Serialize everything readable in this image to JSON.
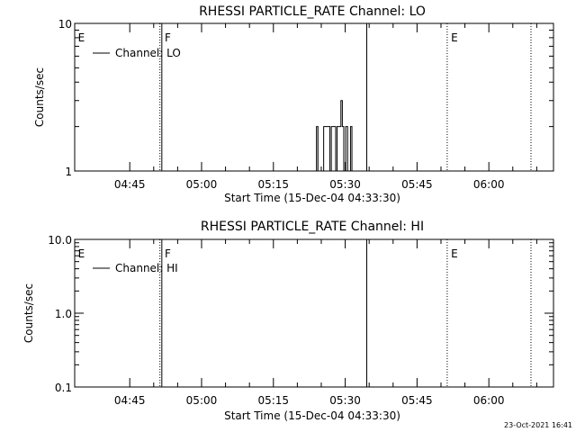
{
  "footer": {
    "timestamp": "23-Oct-2021 16:41"
  },
  "chart_data": [
    {
      "type": "line",
      "title": "RHESSI PARTICLE_RATE Channel: LO",
      "xlabel": "Start Time (15-Dec-04 04:33:30)",
      "ylabel": "Counts/sec",
      "x_unit": "minutes after 04:33:30",
      "xlim": [
        0,
        100
      ],
      "ylim": [
        1,
        10
      ],
      "y_scale": "log",
      "x_ticks": [
        {
          "value": 11.5,
          "label": "04:45"
        },
        {
          "value": 26.5,
          "label": "05:00"
        },
        {
          "value": 41.5,
          "label": "05:15"
        },
        {
          "value": 56.5,
          "label": "05:30"
        },
        {
          "value": 71.5,
          "label": "05:45"
        },
        {
          "value": 86.5,
          "label": "06:00"
        }
      ],
      "y_ticks": [
        {
          "value": 1,
          "label": "1"
        },
        {
          "value": 10,
          "label": "10"
        }
      ],
      "legend": {
        "label": "Channel: LO",
        "position": "top-left"
      },
      "series": [
        {
          "name": "Channel: LO",
          "x": [
            50.3,
            50.5,
            50.8,
            51.0,
            51.3,
            51.8,
            52.0,
            52.3,
            52.8,
            53.0,
            53.3,
            53.6,
            53.9,
            54.2,
            54.5,
            54.8,
            55.0,
            55.3,
            55.6,
            55.9,
            56.2,
            56.6,
            56.8,
            57.0,
            57.3,
            57.6,
            57.9,
            58.2,
            58.5
          ],
          "y": [
            1,
            2,
            1,
            1,
            1,
            1,
            2,
            2,
            2,
            2,
            1,
            2,
            2,
            2,
            1,
            2,
            2,
            2,
            3,
            2,
            1,
            2,
            2,
            1,
            1,
            2,
            1,
            1,
            1
          ]
        }
      ],
      "annotations": [
        {
          "x": 0.5,
          "text": "E"
        },
        {
          "x": 18.6,
          "text": "F"
        },
        {
          "x": 78.4,
          "text": "E"
        }
      ],
      "vlines": [
        {
          "x": 17.8,
          "style": "dotted"
        },
        {
          "x": 18.2,
          "style": "solid"
        },
        {
          "x": 61.0,
          "style": "solid"
        },
        {
          "x": 77.8,
          "style": "dotted"
        },
        {
          "x": 95.3,
          "style": "dotted"
        }
      ]
    },
    {
      "type": "line",
      "title": "RHESSI PARTICLE_RATE Channel: HI",
      "xlabel": "Start Time (15-Dec-04 04:33:30)",
      "ylabel": "Counts/sec",
      "x_unit": "minutes after 04:33:30",
      "xlim": [
        0,
        100
      ],
      "ylim": [
        0.1,
        10
      ],
      "y_scale": "log",
      "x_ticks": [
        {
          "value": 11.5,
          "label": "04:45"
        },
        {
          "value": 26.5,
          "label": "05:00"
        },
        {
          "value": 41.5,
          "label": "05:15"
        },
        {
          "value": 56.5,
          "label": "05:30"
        },
        {
          "value": 71.5,
          "label": "05:45"
        },
        {
          "value": 86.5,
          "label": "06:00"
        }
      ],
      "y_ticks": [
        {
          "value": 0.1,
          "label": "0.1"
        },
        {
          "value": 1,
          "label": "1.0"
        },
        {
          "value": 10,
          "label": "10.0"
        }
      ],
      "legend": {
        "label": "Channel: HI",
        "position": "top-left"
      },
      "series": [
        {
          "name": "Channel: HI",
          "x": [],
          "y": []
        }
      ],
      "annotations": [
        {
          "x": 0.5,
          "text": "E"
        },
        {
          "x": 18.6,
          "text": "F"
        },
        {
          "x": 78.4,
          "text": "E"
        }
      ],
      "vlines": [
        {
          "x": 17.8,
          "style": "dotted"
        },
        {
          "x": 18.2,
          "style": "solid"
        },
        {
          "x": 61.0,
          "style": "solid"
        },
        {
          "x": 77.8,
          "style": "dotted"
        },
        {
          "x": 95.3,
          "style": "dotted"
        }
      ]
    }
  ]
}
